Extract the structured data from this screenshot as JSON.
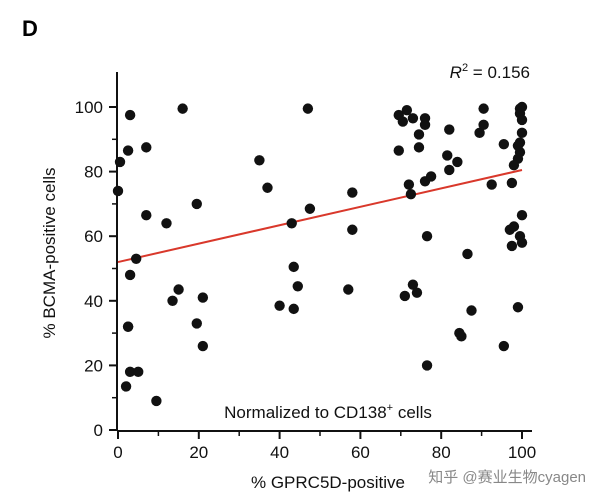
{
  "panel_label": "D",
  "watermark": "知乎 @赛业生物cyagen",
  "chart_data": {
    "type": "scatter",
    "title": "",
    "xlabel": "% GPRC5D-positive",
    "ylabel": "% BCMA-positive cells",
    "xlim": [
      0,
      100
    ],
    "ylim": [
      0,
      100
    ],
    "xticks": [
      "0",
      "20",
      "40",
      "60",
      "80",
      "100"
    ],
    "yticks": [
      "0",
      "20",
      "40",
      "60",
      "80",
      "100"
    ],
    "annotation": {
      "prefix": "Normalized to CD138",
      "sup": "+",
      "suffix": " cells"
    },
    "r_squared": {
      "label": "R",
      "exp": "2",
      "text": " = 0.156"
    },
    "regression_line": {
      "x": [
        0,
        100
      ],
      "y": [
        52,
        80.5
      ],
      "color": "#d9382b"
    },
    "point_color": "#111111",
    "series": [
      {
        "name": "samples",
        "x": [
          0,
          0.5,
          2.5,
          3,
          3,
          7,
          2.5,
          4.5,
          7,
          2,
          3,
          2.5,
          5,
          9.5,
          16,
          12,
          19.5,
          15,
          13.5,
          21,
          19.5,
          21,
          35,
          37,
          43,
          44.5,
          40,
          43.5,
          43.5,
          47.5,
          47,
          58,
          58,
          57,
          69.5,
          71.5,
          70.5,
          69.5,
          72,
          72.5,
          73,
          74.5,
          76,
          74.5,
          76,
          77.5,
          76.5,
          76,
          73,
          74,
          71,
          76.5,
          82,
          82,
          89.5,
          90.5,
          90.5,
          84,
          81.5,
          85,
          92.5,
          86.5,
          87.5,
          84.5,
          95.5,
          95.5,
          100,
          99.5,
          99.5,
          100,
          100,
          99.5,
          99.5,
          99,
          99,
          98,
          97.5,
          100,
          97,
          98,
          99.5,
          97.5,
          99,
          100
        ],
        "y": [
          74,
          83,
          86.5,
          97.5,
          48,
          87.5,
          32,
          53,
          66.5,
          13.5,
          18,
          32,
          18,
          9,
          99.5,
          64,
          70,
          43.5,
          40,
          41,
          33,
          26,
          83.5,
          75,
          64,
          44.5,
          38.5,
          37.5,
          50.5,
          68.5,
          99.5,
          73.5,
          62,
          43.5,
          97.5,
          99,
          95.5,
          86.5,
          76,
          73,
          96.5,
          91.5,
          94.5,
          87.5,
          77,
          78.5,
          20,
          96.5,
          45,
          42.5,
          41.5,
          60,
          93,
          80.5,
          92,
          94.5,
          99.5,
          83,
          85,
          29,
          76,
          54.5,
          37,
          30,
          26,
          88.5,
          100,
          99.5,
          98,
          96,
          92,
          89,
          86,
          88,
          84,
          82,
          76.5,
          66.5,
          62,
          63,
          60,
          57,
          38,
          58
        ]
      }
    ]
  }
}
